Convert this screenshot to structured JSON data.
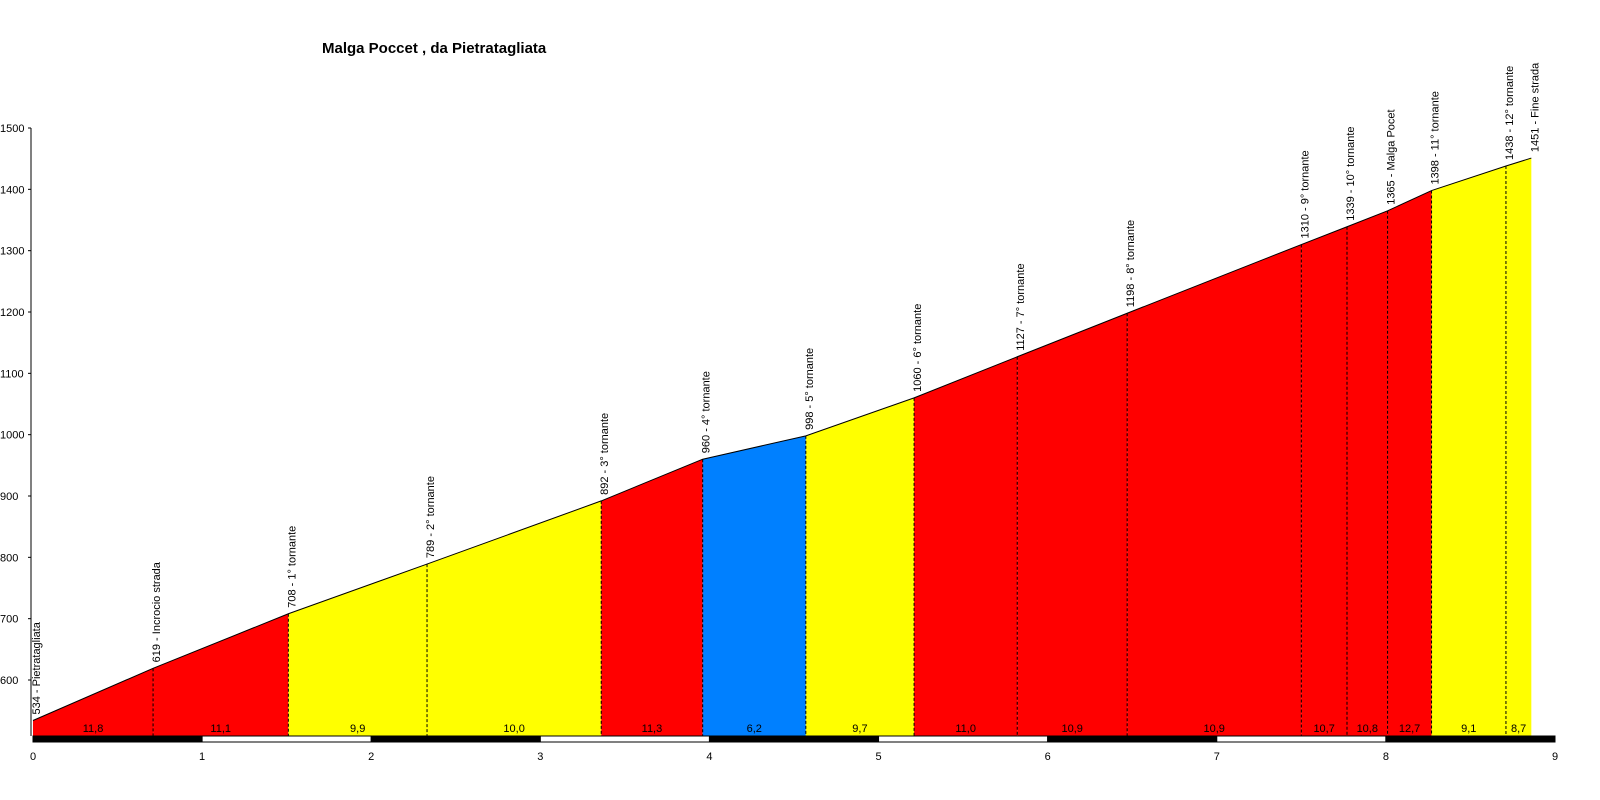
{
  "chart_data": {
    "type": "area",
    "title": "Malga Poccet , da Pietratagliata",
    "xlabel": "",
    "ylabel": "",
    "xlim": [
      0,
      9
    ],
    "ylim": [
      534,
      1500
    ],
    "x_ticks": [
      "0",
      "1",
      "2",
      "3",
      "4",
      "5",
      "6",
      "7",
      "8",
      "9"
    ],
    "y_ticks": [
      "600",
      "700",
      "800",
      "900",
      "1000",
      "1100",
      "1200",
      "1300",
      "1400",
      "1500"
    ],
    "grid": false,
    "profile": [
      {
        "km": 0.0,
        "elev": 534
      },
      {
        "km": 0.71,
        "elev": 619
      },
      {
        "km": 1.51,
        "elev": 708
      },
      {
        "km": 2.33,
        "elev": 789
      },
      {
        "km": 3.36,
        "elev": 892
      },
      {
        "km": 3.96,
        "elev": 960
      },
      {
        "km": 4.57,
        "elev": 998
      },
      {
        "km": 5.21,
        "elev": 1060
      },
      {
        "km": 5.82,
        "elev": 1127
      },
      {
        "km": 6.47,
        "elev": 1198
      },
      {
        "km": 7.5,
        "elev": 1310
      },
      {
        "km": 7.77,
        "elev": 1339
      },
      {
        "km": 8.01,
        "elev": 1365
      },
      {
        "km": 8.27,
        "elev": 1398
      },
      {
        "km": 8.71,
        "elev": 1438
      },
      {
        "km": 8.86,
        "elev": 1451
      }
    ],
    "segment_slopes": [
      "11,8",
      "11,1",
      "9,9",
      "10,0",
      "11,3",
      "6,2",
      "9,7",
      "11,0",
      "10,9",
      "10,9",
      "10,7",
      "10,8",
      "12,7",
      "9,1",
      "8,7"
    ],
    "segment_colors": [
      "#ff0000",
      "#ff0000",
      "#ffff00",
      "#ffff00",
      "#ff0000",
      "#0080ff",
      "#ffff00",
      "#ff0000",
      "#ff0000",
      "#ff0000",
      "#ff0000",
      "#ff0000",
      "#ff0000",
      "#ffff00",
      "#ffff00"
    ],
    "point_labels": [
      "534 - Pietratagliata",
      "619 - Incrocio strada",
      "708 - 1° tornante",
      "789 - 2° tornante",
      "892 - 3° tornante",
      "960 - 4° tornante",
      "998 - 5° tornante",
      "1060 - 6° tornante",
      "1127 - 7° tornante",
      "1198 - 8° tornante",
      "1310 - 9° tornante",
      "1339 - 10° tornante",
      "1365 - Malga Pocet",
      "1398 - 11° tornante",
      "1438 - 12° tornante",
      "1451 - Fine strada"
    ]
  }
}
